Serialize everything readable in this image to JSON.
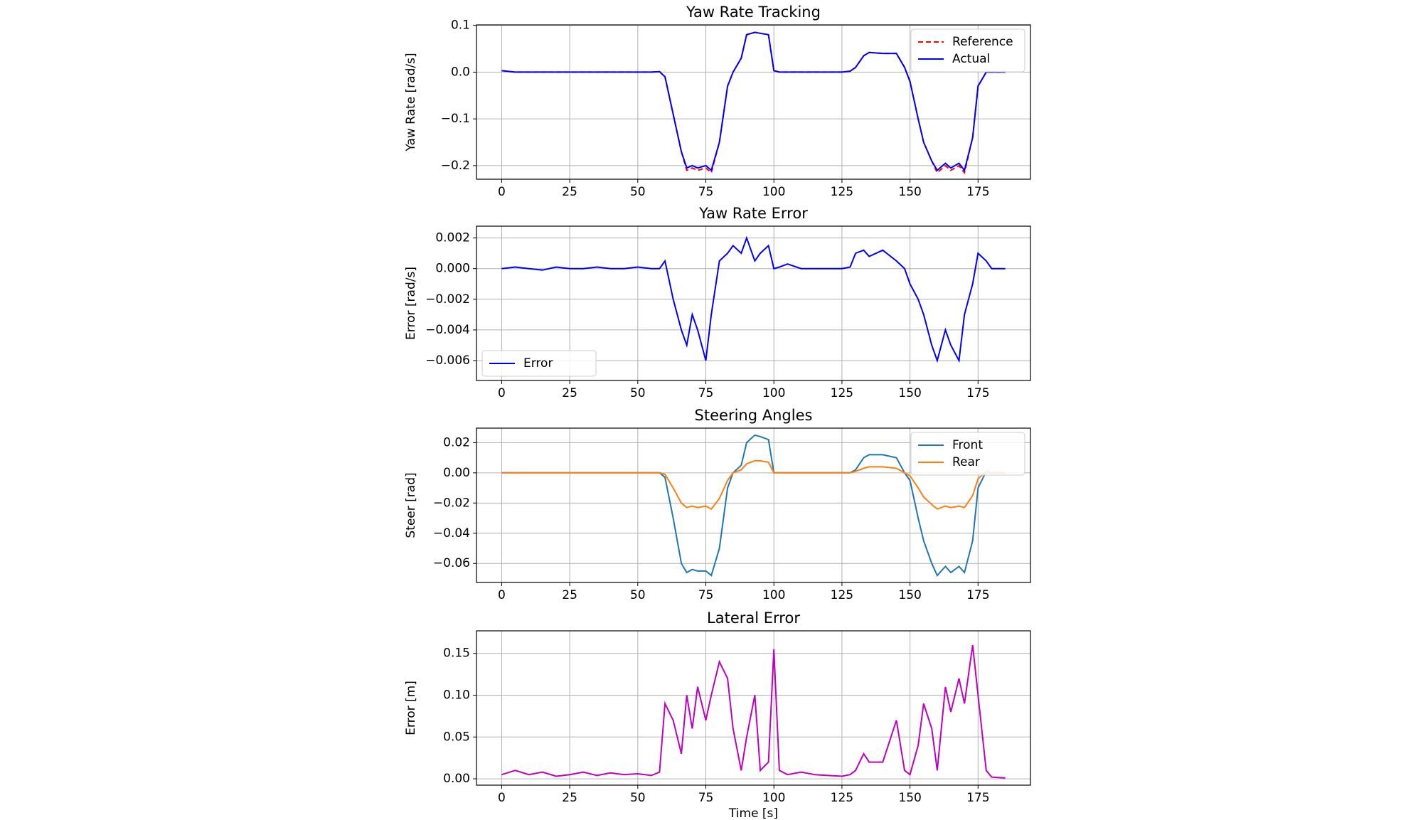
{
  "chart_data": [
    {
      "type": "line",
      "title": "Yaw Rate Tracking",
      "ylabel": "Yaw Rate [rad/s]",
      "x": [
        0,
        5,
        10,
        15,
        20,
        25,
        30,
        35,
        40,
        45,
        50,
        55,
        58,
        60,
        63,
        66,
        68,
        70,
        72,
        75,
        77,
        80,
        83,
        85,
        88,
        90,
        93,
        95,
        98,
        100,
        102,
        105,
        110,
        115,
        120,
        125,
        128,
        130,
        133,
        135,
        140,
        145,
        148,
        150,
        153,
        155,
        158,
        160,
        163,
        165,
        168,
        170,
        173,
        175,
        178,
        180,
        185
      ],
      "series": [
        {
          "name": "Reference",
          "color": "#ff0000",
          "dash": true,
          "values": [
            0.003,
            0,
            0,
            0,
            0,
            0,
            0,
            0,
            0,
            0,
            0,
            0,
            0.001,
            -0.01,
            -0.09,
            -0.17,
            -0.21,
            -0.205,
            -0.21,
            -0.205,
            -0.215,
            -0.15,
            -0.03,
            0,
            0.03,
            0.08,
            0.085,
            0.083,
            0.08,
            0.003,
            0,
            0,
            0,
            0,
            0,
            0,
            0.002,
            0.01,
            0.035,
            0.042,
            0.04,
            0.04,
            0.01,
            -0.02,
            -0.1,
            -0.15,
            -0.19,
            -0.215,
            -0.2,
            -0.21,
            -0.2,
            -0.215,
            -0.14,
            -0.03,
            0,
            0,
            0
          ]
        },
        {
          "name": "Actual",
          "color": "#0000ff",
          "values": [
            0.003,
            0,
            0,
            0,
            0,
            0,
            0,
            0,
            0,
            0,
            0,
            0,
            0.001,
            -0.01,
            -0.09,
            -0.17,
            -0.205,
            -0.2,
            -0.205,
            -0.2,
            -0.21,
            -0.15,
            -0.03,
            0,
            0.03,
            0.08,
            0.085,
            0.083,
            0.08,
            0.003,
            0,
            0,
            0,
            0,
            0,
            0,
            0.002,
            0.01,
            0.035,
            0.042,
            0.04,
            0.04,
            0.01,
            -0.02,
            -0.1,
            -0.15,
            -0.19,
            -0.21,
            -0.195,
            -0.205,
            -0.195,
            -0.21,
            -0.14,
            -0.03,
            0,
            0,
            0
          ]
        }
      ],
      "legend": "upper right",
      "grid": true,
      "xlim": [
        -9.25,
        194.25
      ],
      "xticks": [
        0,
        25,
        50,
        75,
        100,
        125,
        150,
        175
      ],
      "ylim": [
        -0.229,
        0.101
      ],
      "yticks": [
        {
          "value": -0.2,
          "label": "−0.2"
        },
        {
          "value": -0.1,
          "label": "−0.1"
        },
        {
          "value": 0,
          "label": "0.0"
        },
        0.1
      ]
    },
    {
      "type": "line",
      "title": "Yaw Rate Error",
      "ylabel": "Error [rad/s]",
      "x": [
        0,
        5,
        10,
        15,
        20,
        25,
        30,
        35,
        40,
        45,
        50,
        55,
        58,
        60,
        63,
        66,
        68,
        70,
        72,
        75,
        77,
        80,
        83,
        85,
        88,
        90,
        93,
        95,
        98,
        100,
        102,
        105,
        110,
        115,
        120,
        125,
        128,
        130,
        133,
        135,
        140,
        145,
        148,
        150,
        153,
        155,
        158,
        160,
        163,
        165,
        168,
        170,
        173,
        175,
        178,
        180,
        185
      ],
      "series": [
        {
          "name": "Error",
          "color": "#0000ff",
          "values": [
            0,
            0.0001,
            0,
            -0.0001,
            0.0001,
            0,
            0,
            0.0001,
            0,
            0,
            0.0001,
            0,
            0,
            0.0005,
            -0.002,
            -0.004,
            -0.005,
            -0.003,
            -0.004,
            -0.006,
            -0.003,
            0.0005,
            0.001,
            0.0015,
            0.001,
            0.002,
            0.0005,
            0.001,
            0.0015,
            0,
            0.0001,
            0.0003,
            0,
            0,
            0,
            0,
            0.0001,
            0.001,
            0.0012,
            0.0008,
            0.0012,
            0.0005,
            0,
            -0.001,
            -0.002,
            -0.003,
            -0.005,
            -0.006,
            -0.004,
            -0.005,
            -0.006,
            -0.003,
            -0.001,
            0.001,
            0.0005,
            0,
            0
          ]
        }
      ],
      "legend": "lower left",
      "grid": true,
      "xlim": [
        -9.25,
        194.25
      ],
      "xticks": [
        0,
        25,
        50,
        75,
        100,
        125,
        150,
        175
      ],
      "ylim": [
        -0.0073,
        0.00277
      ],
      "yticks": [
        {
          "value": -0.006,
          "label": "−0.006"
        },
        {
          "value": -0.004,
          "label": "−0.004"
        },
        {
          "value": -0.002,
          "label": "−0.002"
        },
        {
          "value": 0,
          "label": "0.000"
        },
        0.002
      ]
    },
    {
      "type": "line",
      "title": "Steering Angles",
      "ylabel": "Steer [rad]",
      "x": [
        0,
        5,
        10,
        15,
        20,
        25,
        30,
        35,
        40,
        45,
        50,
        55,
        58,
        60,
        63,
        66,
        68,
        70,
        72,
        75,
        77,
        80,
        83,
        85,
        88,
        90,
        93,
        95,
        98,
        100,
        102,
        105,
        110,
        115,
        120,
        125,
        128,
        130,
        133,
        135,
        140,
        145,
        148,
        150,
        153,
        155,
        158,
        160,
        163,
        165,
        168,
        170,
        173,
        175,
        178,
        180,
        185
      ],
      "series": [
        {
          "name": "Front",
          "color": "#1f77b4",
          "values": [
            0,
            0,
            0,
            0,
            0,
            0,
            0,
            0,
            0,
            0,
            0,
            0,
            0,
            -0.003,
            -0.03,
            -0.06,
            -0.066,
            -0.064,
            -0.065,
            -0.065,
            -0.068,
            -0.05,
            -0.01,
            0,
            0.005,
            0.02,
            0.025,
            0.024,
            0.022,
            0,
            0,
            0,
            0,
            0,
            0,
            0,
            0,
            0.002,
            0.01,
            0.012,
            0.012,
            0.01,
            0,
            -0.005,
            -0.03,
            -0.045,
            -0.06,
            -0.068,
            -0.062,
            -0.066,
            -0.062,
            -0.066,
            -0.045,
            -0.01,
            0.001,
            0,
            0
          ]
        },
        {
          "name": "Rear",
          "color": "#ff7f0e",
          "values": [
            0,
            0,
            0,
            0,
            0,
            0,
            0,
            0,
            0,
            0,
            0,
            0,
            0,
            -0.001,
            -0.01,
            -0.02,
            -0.023,
            -0.022,
            -0.023,
            -0.022,
            -0.024,
            -0.017,
            -0.005,
            0,
            0.002,
            0.006,
            0.008,
            0.008,
            0.007,
            0,
            0,
            0,
            0,
            0,
            0,
            0,
            0,
            0.001,
            0.003,
            0.004,
            0.004,
            0.003,
            0,
            -0.002,
            -0.01,
            -0.016,
            -0.021,
            -0.024,
            -0.022,
            -0.023,
            -0.022,
            -0.023,
            -0.015,
            -0.004,
            0.001,
            0,
            0
          ]
        }
      ],
      "legend": "upper right",
      "grid": true,
      "xlim": [
        -9.25,
        194.25
      ],
      "xticks": [
        0,
        25,
        50,
        75,
        100,
        125,
        150,
        175
      ],
      "ylim": [
        -0.0726,
        0.0296
      ],
      "yticks": [
        {
          "value": -0.06,
          "label": "−0.06"
        },
        {
          "value": -0.04,
          "label": "−0.04"
        },
        {
          "value": -0.02,
          "label": "−0.02"
        },
        {
          "value": 0,
          "label": "0.00"
        },
        0.02
      ]
    },
    {
      "type": "line",
      "title": "Lateral Error",
      "ylabel": "Error [m]",
      "xlabel": "Time [s]",
      "x": [
        0,
        5,
        10,
        15,
        20,
        25,
        30,
        35,
        40,
        45,
        50,
        55,
        58,
        60,
        63,
        66,
        68,
        70,
        72,
        75,
        77,
        80,
        83,
        85,
        88,
        90,
        93,
        95,
        98,
        100,
        102,
        105,
        110,
        115,
        120,
        125,
        128,
        130,
        133,
        135,
        140,
        145,
        148,
        150,
        153,
        155,
        158,
        160,
        163,
        165,
        168,
        170,
        173,
        175,
        178,
        180,
        185
      ],
      "series": [
        {
          "color": "#bf00bf",
          "values": [
            0.005,
            0.01,
            0.005,
            0.008,
            0.003,
            0.005,
            0.008,
            0.004,
            0.007,
            0.005,
            0.006,
            0.004,
            0.008,
            0.09,
            0.07,
            0.03,
            0.1,
            0.06,
            0.11,
            0.07,
            0.1,
            0.14,
            0.12,
            0.06,
            0.01,
            0.05,
            0.1,
            0.01,
            0.02,
            0.155,
            0.01,
            0.005,
            0.008,
            0.005,
            0.004,
            0.003,
            0.005,
            0.01,
            0.03,
            0.02,
            0.02,
            0.07,
            0.01,
            0.005,
            0.04,
            0.09,
            0.06,
            0.01,
            0.11,
            0.08,
            0.12,
            0.09,
            0.16,
            0.1,
            0.01,
            0.002,
            0.001
          ]
        }
      ],
      "grid": true,
      "xlim": [
        -9.25,
        194.25
      ],
      "xticks": [
        0,
        25,
        50,
        75,
        100,
        125,
        150,
        175
      ],
      "ylim": [
        -0.0076,
        0.177
      ],
      "yticks": [
        {
          "value": 0,
          "label": "0.00"
        },
        0.05,
        {
          "value": 0.1,
          "label": "0.10"
        },
        0.15
      ]
    }
  ]
}
